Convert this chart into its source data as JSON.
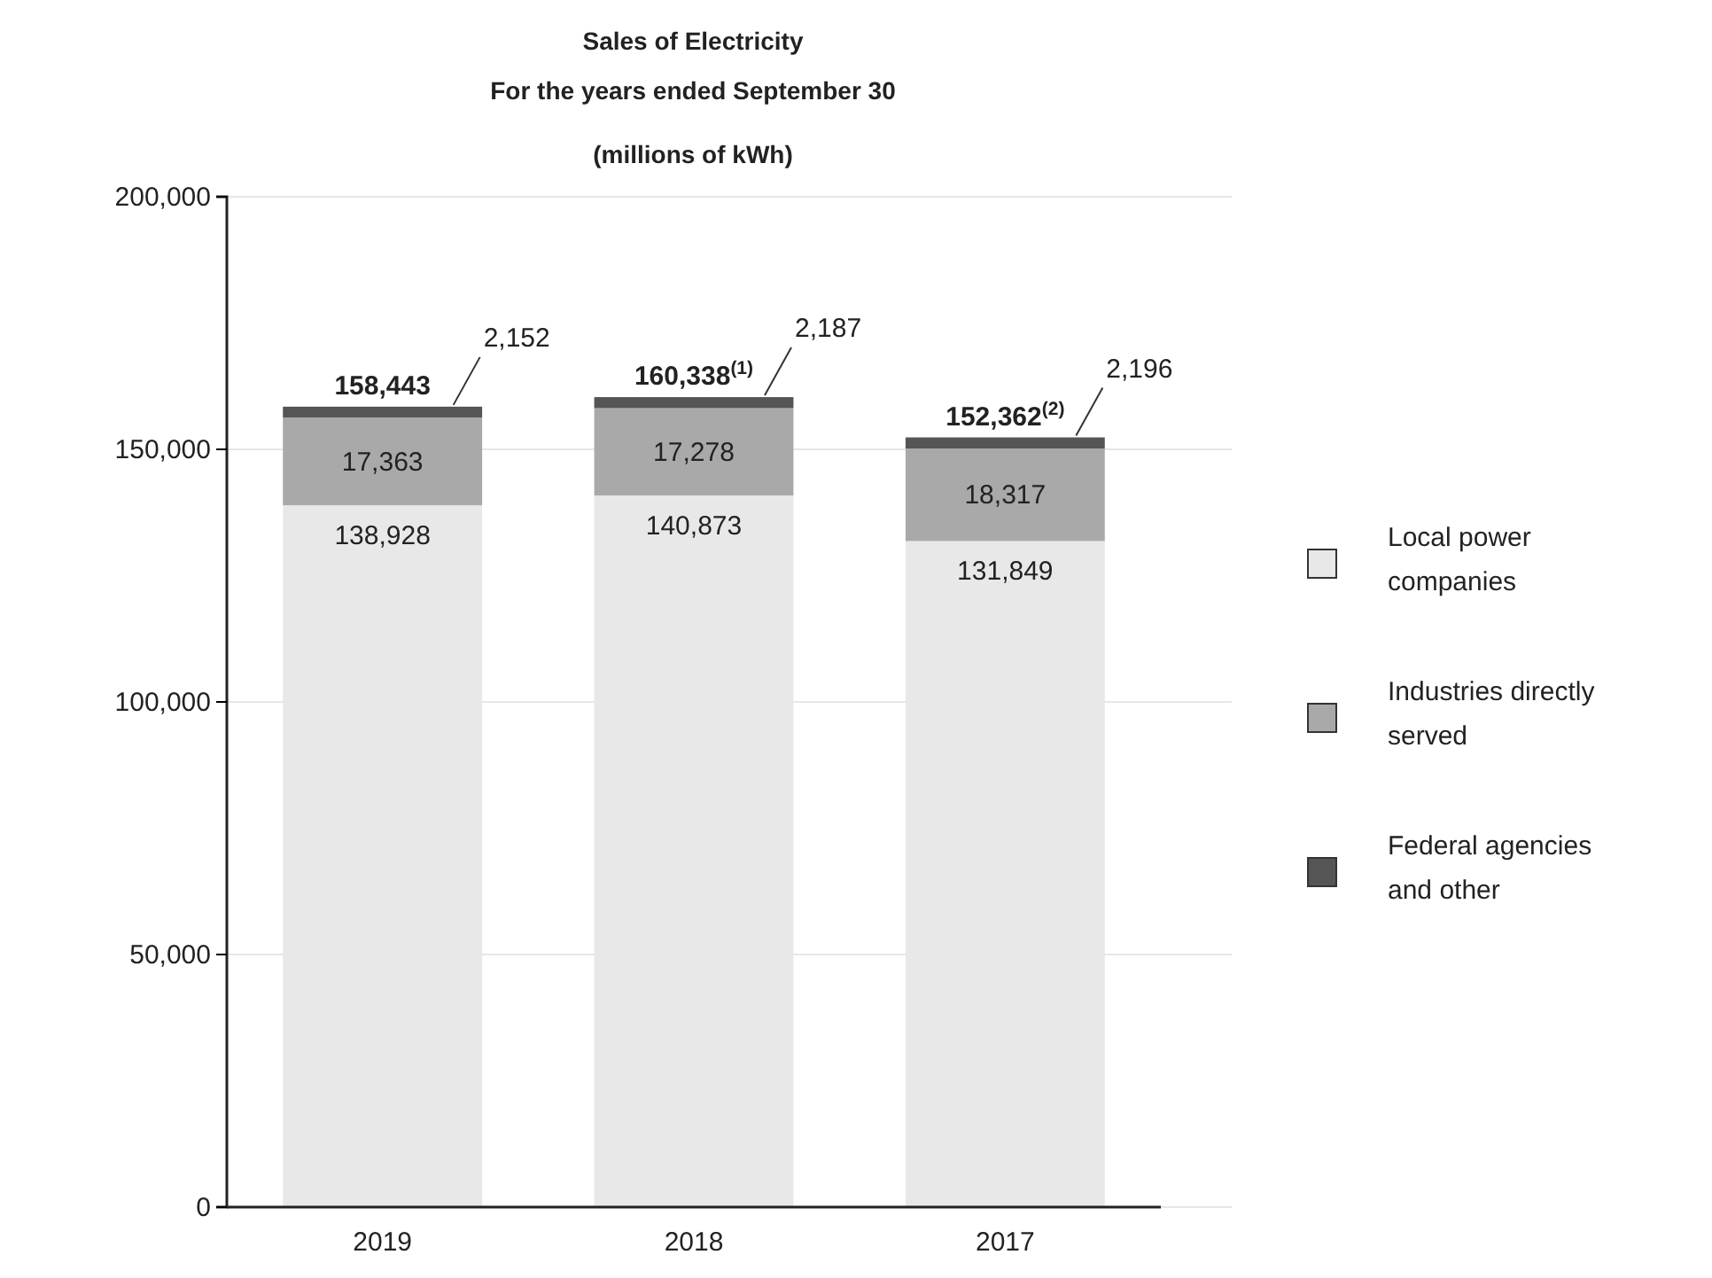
{
  "chart_data": {
    "type": "bar",
    "title": "Sales of Electricity",
    "subtitle": "For the years ended September 30",
    "annotations": [
      "(millions of kWh)"
    ],
    "categories": [
      "2019",
      "2018",
      "2017"
    ],
    "stacked": true,
    "series": [
      {
        "name": "Local power companies",
        "color": "#e8e8e8",
        "values": [
          138928,
          140873,
          131849
        ],
        "value_labels": [
          "138,928",
          "140,873",
          "131,849"
        ]
      },
      {
        "name": "Industries directly served",
        "color": "#a9a9a9",
        "values": [
          17363,
          17278,
          18317
        ],
        "value_labels": [
          "17,363",
          "17,278",
          "18,317"
        ]
      },
      {
        "name": "Federal agencies and other",
        "color": "#555555",
        "values": [
          2152,
          2187,
          2196
        ],
        "value_labels": [
          "2,152",
          "2,187",
          "2,196"
        ]
      }
    ],
    "totals": [
      "158,443",
      "160,338$^{(1)}$",
      "152,362$^{(2)}$"
    ],
    "ylim": [
      0,
      200000
    ],
    "yticks": [
      {
        "value": 0,
        "label": "0"
      },
      {
        "value": 50000,
        "label": "50,000"
      },
      {
        "value": 100000,
        "label": "100,000"
      },
      {
        "value": 150000,
        "label": "150,000"
      },
      {
        "value": 200000,
        "label": "200,000"
      }
    ],
    "grid": "y",
    "legend": "right"
  }
}
